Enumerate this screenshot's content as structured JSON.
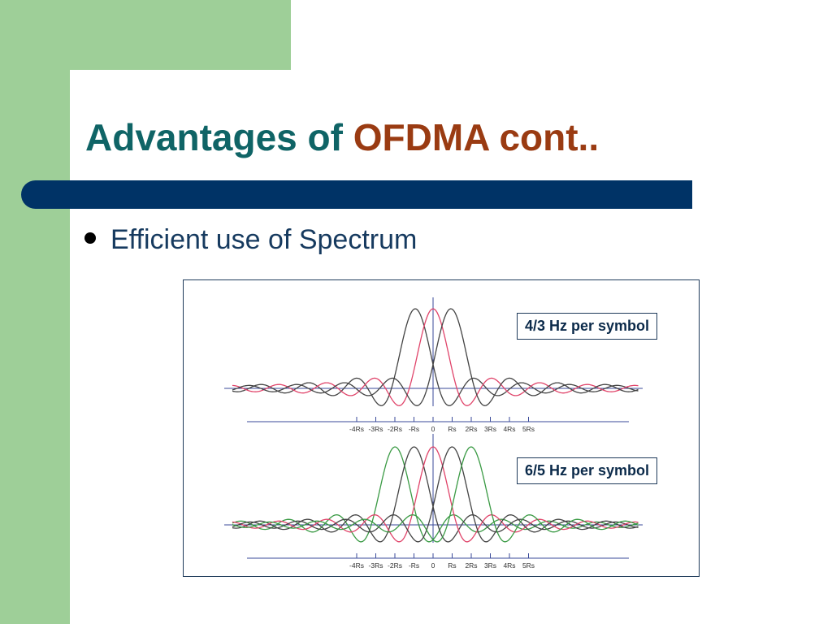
{
  "slide": {
    "title_main": "Advantages of ",
    "title_accent": "OFDMA cont..",
    "bullet": "Efficient use of Spectrum"
  },
  "figure": {
    "panels": [
      {
        "caption": "4/3 Hz per symbol",
        "ticks": [
          "-4Rs",
          "-3Rs",
          "-2Rs",
          "-Rs",
          "0",
          "Rs",
          "2Rs",
          "3Rs",
          "4Rs",
          "5Rs"
        ]
      },
      {
        "caption": "6/5 Hz per symbol",
        "ticks": [
          "-4Rs",
          "-3Rs",
          "-2Rs",
          "-Rs",
          "0",
          "Rs",
          "2Rs",
          "3Rs",
          "4Rs",
          "5Rs"
        ]
      }
    ]
  },
  "colors": {
    "title": "#0f6466",
    "accent": "#9a3b12",
    "bar": "#003366",
    "sidebar": "#9ecf98"
  }
}
